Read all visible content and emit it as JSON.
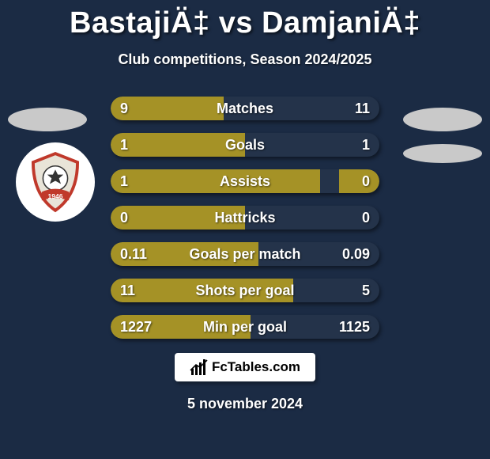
{
  "title": "BastajiÄ‡ vs DamjaniÄ‡",
  "subtitle": "Club competitions, Season 2024/2025",
  "background_color": "#1b2b44",
  "left_blur_color": "#c9c9c9",
  "right_blur_color": "#c9c9c9",
  "crest_bg": "#ffffff",
  "bars": {
    "track_color": "#24334a",
    "left_fill": "#a59226",
    "right_fill": "#a59226",
    "text_color": "#ffffff",
    "rows": [
      {
        "label": "Matches",
        "left_val": "9",
        "right_val": "11",
        "left_pct": 42,
        "right_pct": 0
      },
      {
        "label": "Goals",
        "left_val": "1",
        "right_val": "1",
        "left_pct": 50,
        "right_pct": 0
      },
      {
        "label": "Assists",
        "left_val": "1",
        "right_val": "0",
        "left_pct": 78,
        "right_pct": 15
      },
      {
        "label": "Hattricks",
        "left_val": "0",
        "right_val": "0",
        "left_pct": 50,
        "right_pct": 0
      },
      {
        "label": "Goals per match",
        "left_val": "0.11",
        "right_val": "0.09",
        "left_pct": 55,
        "right_pct": 0
      },
      {
        "label": "Shots per goal",
        "left_val": "11",
        "right_val": "5",
        "left_pct": 68,
        "right_pct": 0
      },
      {
        "label": "Min per goal",
        "left_val": "1227",
        "right_val": "1125",
        "left_pct": 52,
        "right_pct": 0
      }
    ]
  },
  "footer_brand": "FcTables.com",
  "footer_date": "5 november 2024",
  "fontsize": {
    "title": 38,
    "subtitle": 18,
    "bar": 18,
    "footer": 18,
    "brand": 17
  }
}
